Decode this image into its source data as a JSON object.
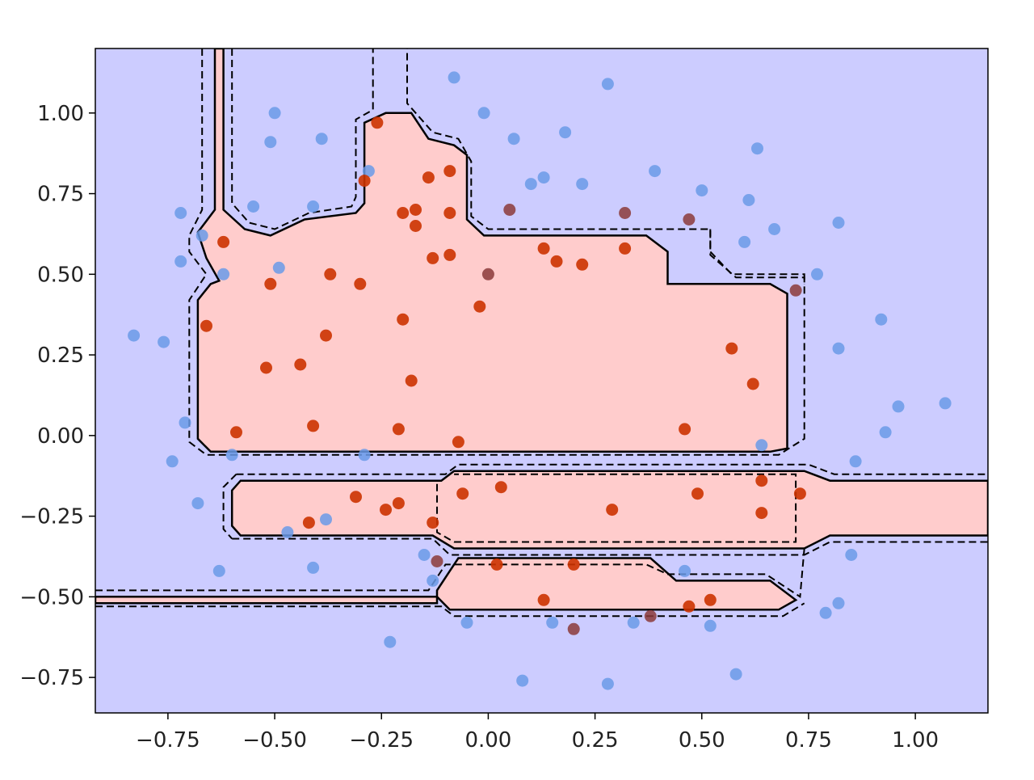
{
  "chart_data": {
    "type": "scatter",
    "title": "",
    "xlabel": "",
    "ylabel": "",
    "xlim": [
      -0.92,
      1.17
    ],
    "ylim": [
      -0.86,
      1.2
    ],
    "x_ticks": [
      -0.75,
      -0.5,
      -0.25,
      0.0,
      0.25,
      0.5,
      0.75,
      1.0
    ],
    "x_tick_labels": [
      "−0.75",
      "−0.50",
      "−0.25",
      "0.00",
      "0.25",
      "0.50",
      "0.75",
      "1.00"
    ],
    "y_ticks": [
      1.0,
      0.75,
      0.5,
      0.25,
      0.0,
      -0.25,
      -0.5,
      -0.75
    ],
    "y_tick_labels": [
      "1.00",
      "0.75",
      "0.50",
      "0.25",
      "0.00",
      "−0.25",
      "−0.50",
      "−0.75"
    ],
    "grid": false,
    "legend": "none",
    "colors": {
      "background_class": "#ccccff",
      "region_class": "#ffcccc",
      "class_0_points": "#6a9ae8",
      "class_1_points": "#cc3300",
      "misclassified_points": "#8b3a3a",
      "boundary": "#000000"
    },
    "regions": [
      {
        "name": "upper-region",
        "points": [
          [
            -0.64,
            1.2
          ],
          [
            -0.62,
            1.2
          ],
          [
            -0.62,
            0.7
          ],
          [
            -0.57,
            0.64
          ],
          [
            -0.51,
            0.62
          ],
          [
            -0.43,
            0.67
          ],
          [
            -0.31,
            0.69
          ],
          [
            -0.29,
            0.72
          ],
          [
            -0.29,
            0.97
          ],
          [
            -0.24,
            1.0
          ],
          [
            -0.18,
            1.0
          ],
          [
            -0.14,
            0.92
          ],
          [
            -0.08,
            0.9
          ],
          [
            -0.05,
            0.87
          ],
          [
            -0.05,
            0.67
          ],
          [
            -0.01,
            0.62
          ],
          [
            0.37,
            0.62
          ],
          [
            0.42,
            0.57
          ],
          [
            0.42,
            0.47
          ],
          [
            0.66,
            0.47
          ],
          [
            0.7,
            0.44
          ],
          [
            0.7,
            -0.04
          ],
          [
            0.66,
            -0.05
          ],
          [
            -0.65,
            -0.05
          ],
          [
            -0.68,
            -0.01
          ],
          [
            -0.68,
            0.42
          ],
          [
            -0.65,
            0.47
          ],
          [
            -0.63,
            0.48
          ],
          [
            -0.66,
            0.55
          ],
          [
            -0.68,
            0.63
          ],
          [
            -0.64,
            0.7
          ]
        ]
      },
      {
        "name": "middle-band",
        "points": [
          [
            -0.58,
            -0.14
          ],
          [
            -0.11,
            -0.14
          ],
          [
            -0.08,
            -0.11
          ],
          [
            0.74,
            -0.11
          ],
          [
            0.8,
            -0.14
          ],
          [
            1.17,
            -0.14
          ],
          [
            1.17,
            -0.31
          ],
          [
            0.8,
            -0.31
          ],
          [
            0.74,
            -0.35
          ],
          [
            -0.08,
            -0.35
          ],
          [
            -0.13,
            -0.31
          ],
          [
            -0.58,
            -0.31
          ],
          [
            -0.6,
            -0.28
          ],
          [
            -0.6,
            -0.17
          ]
        ]
      },
      {
        "name": "lower-band",
        "points": [
          [
            -0.07,
            -0.38
          ],
          [
            0.38,
            -0.38
          ],
          [
            0.44,
            -0.45
          ],
          [
            0.66,
            -0.45
          ],
          [
            0.72,
            -0.51
          ],
          [
            0.68,
            -0.54
          ],
          [
            -0.09,
            -0.54
          ],
          [
            -0.12,
            -0.5
          ],
          [
            -0.92,
            -0.5
          ],
          [
            -0.92,
            -0.52
          ],
          [
            -0.12,
            -0.52
          ],
          [
            -0.12,
            -0.48
          ],
          [
            -0.09,
            -0.42
          ]
        ]
      }
    ],
    "dashed_margins": [
      {
        "name": "upper-margin",
        "points": [
          [
            -0.67,
            1.2
          ],
          [
            -0.67,
            0.7
          ],
          [
            -0.7,
            0.62
          ],
          [
            -0.7,
            0.57
          ],
          [
            -0.66,
            0.5
          ],
          [
            -0.7,
            0.42
          ],
          [
            -0.7,
            -0.02
          ],
          [
            -0.66,
            -0.06
          ],
          [
            0.68,
            -0.06
          ],
          [
            0.74,
            -0.01
          ],
          [
            0.74,
            0.49
          ],
          [
            0.58,
            0.49
          ],
          [
            0.52,
            0.56
          ],
          [
            0.52,
            0.64
          ],
          [
            0.0,
            0.64
          ],
          [
            -0.04,
            0.68
          ],
          [
            -0.04,
            0.85
          ],
          [
            -0.07,
            0.92
          ],
          [
            -0.13,
            0.94
          ],
          [
            -0.19,
            1.03
          ],
          [
            -0.19,
            1.2
          ]
        ]
      },
      {
        "name": "upper-margin-inner",
        "points": [
          [
            -0.6,
            1.2
          ],
          [
            -0.6,
            0.72
          ],
          [
            -0.56,
            0.66
          ],
          [
            -0.5,
            0.64
          ],
          [
            -0.42,
            0.69
          ],
          [
            -0.32,
            0.71
          ],
          [
            -0.31,
            0.74
          ],
          [
            -0.31,
            0.98
          ],
          [
            -0.27,
            1.01
          ],
          [
            -0.27,
            1.2
          ]
        ]
      },
      {
        "name": "band-margin-top",
        "points": [
          [
            -0.59,
            -0.12
          ],
          [
            -0.1,
            -0.12
          ],
          [
            -0.07,
            -0.09
          ],
          [
            0.75,
            -0.09
          ],
          [
            0.81,
            -0.12
          ],
          [
            1.17,
            -0.12
          ]
        ]
      },
      {
        "name": "band-margin-bottom",
        "points": [
          [
            -0.6,
            -0.32
          ],
          [
            -0.13,
            -0.32
          ],
          [
            -0.09,
            -0.37
          ],
          [
            0.74,
            -0.37
          ],
          [
            0.8,
            -0.33
          ],
          [
            1.17,
            -0.33
          ]
        ]
      },
      {
        "name": "band-margin-left",
        "points": [
          [
            -0.59,
            -0.12
          ],
          [
            -0.62,
            -0.16
          ],
          [
            -0.62,
            -0.29
          ],
          [
            -0.6,
            -0.32
          ]
        ]
      },
      {
        "name": "inner-box-margin",
        "points": [
          [
            -0.12,
            -0.15
          ],
          [
            -0.12,
            -0.3
          ],
          [
            -0.08,
            -0.33
          ],
          [
            0.72,
            -0.33
          ],
          [
            0.72,
            -0.12
          ],
          [
            -0.08,
            -0.12
          ]
        ]
      },
      {
        "name": "lower-margin-top",
        "points": [
          [
            -0.92,
            -0.48
          ],
          [
            -0.14,
            -0.48
          ],
          [
            -0.1,
            -0.4
          ],
          [
            0.37,
            -0.4
          ],
          [
            0.42,
            -0.43
          ],
          [
            0.65,
            -0.43
          ],
          [
            0.73,
            -0.5
          ],
          [
            0.74,
            -0.35
          ]
        ]
      },
      {
        "name": "lower-margin-bottom",
        "points": [
          [
            -0.92,
            -0.53
          ],
          [
            -0.11,
            -0.53
          ],
          [
            -0.08,
            -0.56
          ],
          [
            0.69,
            -0.56
          ],
          [
            0.74,
            -0.52
          ]
        ]
      },
      {
        "name": "right-step-margin",
        "points": [
          [
            0.52,
            0.64
          ],
          [
            0.52,
            0.57
          ],
          [
            0.57,
            0.5
          ],
          [
            0.74,
            0.5
          ],
          [
            0.74,
            0.47
          ]
        ]
      }
    ],
    "series": [
      {
        "name": "class_0",
        "color": "#6a9ae8",
        "x": [
          -0.83,
          -0.76,
          -0.74,
          -0.72,
          -0.71,
          -0.68,
          -0.67,
          -0.63,
          -0.6,
          -0.55,
          -0.51,
          -0.5,
          -0.47,
          -0.41,
          -0.39,
          -0.38,
          -0.41,
          -0.29,
          -0.23,
          -0.15,
          -0.13,
          -0.08,
          -0.05,
          -0.01,
          0.06,
          0.1,
          0.15,
          0.18,
          0.22,
          0.28,
          0.28,
          0.34,
          0.39,
          0.46,
          0.5,
          0.52,
          0.58,
          0.6,
          0.61,
          0.63,
          0.64,
          0.67,
          0.77,
          0.82,
          0.82,
          0.82,
          0.85,
          0.86,
          0.92,
          0.93,
          0.96,
          1.07,
          0.79,
          0.08,
          0.13,
          -0.28,
          -0.49,
          -0.62,
          -0.72
        ],
        "y": [
          0.31,
          0.29,
          -0.08,
          0.54,
          0.04,
          -0.21,
          0.62,
          -0.42,
          -0.06,
          0.71,
          0.91,
          1.0,
          -0.3,
          0.71,
          0.92,
          -0.26,
          -0.41,
          -0.06,
          -0.64,
          -0.37,
          -0.45,
          1.11,
          -0.58,
          1.0,
          0.92,
          0.78,
          -0.58,
          0.94,
          0.78,
          1.09,
          -0.77,
          -0.58,
          0.82,
          -0.42,
          0.76,
          -0.59,
          -0.74,
          0.6,
          0.73,
          0.89,
          -0.03,
          0.64,
          0.5,
          0.66,
          0.27,
          -0.52,
          -0.37,
          -0.08,
          0.36,
          0.01,
          0.09,
          0.1,
          -0.55,
          -0.76,
          0.8,
          0.82,
          0.52,
          0.5,
          0.69
        ]
      },
      {
        "name": "class_1",
        "color": "#cc3300",
        "x": [
          -0.62,
          -0.59,
          -0.66,
          -0.51,
          -0.52,
          -0.44,
          -0.41,
          -0.37,
          -0.38,
          -0.3,
          -0.29,
          -0.26,
          -0.21,
          -0.2,
          -0.2,
          -0.18,
          -0.17,
          -0.17,
          -0.14,
          -0.13,
          -0.09,
          -0.09,
          -0.09,
          -0.07,
          -0.02,
          0.13,
          0.16,
          0.22,
          0.32,
          0.46,
          0.57,
          0.62,
          -0.21,
          -0.31,
          -0.24,
          -0.13,
          -0.06,
          0.03,
          0.2,
          0.29,
          0.49,
          0.64,
          0.64,
          0.73,
          -0.42,
          0.02,
          0.13,
          0.47,
          0.52
        ],
        "y": [
          0.6,
          0.01,
          0.34,
          0.47,
          0.21,
          0.22,
          0.03,
          0.5,
          0.31,
          0.47,
          0.79,
          0.97,
          0.02,
          0.69,
          0.36,
          0.17,
          0.7,
          0.65,
          0.8,
          0.55,
          0.56,
          0.69,
          0.82,
          -0.02,
          0.4,
          0.58,
          0.54,
          0.53,
          0.58,
          0.02,
          0.27,
          0.16,
          -0.21,
          -0.19,
          -0.23,
          -0.27,
          -0.18,
          -0.16,
          -0.4,
          -0.23,
          -0.18,
          -0.14,
          -0.24,
          -0.18,
          -0.27,
          -0.4,
          -0.51,
          -0.53,
          -0.51
        ]
      },
      {
        "name": "misclassified",
        "color": "#8b3a3a",
        "x": [
          0.05,
          0.32,
          0.47,
          0.72,
          -0.12,
          0.2,
          0.38,
          0.0
        ],
        "y": [
          0.7,
          0.69,
          0.67,
          0.45,
          -0.39,
          -0.6,
          -0.56,
          0.5
        ]
      }
    ]
  }
}
